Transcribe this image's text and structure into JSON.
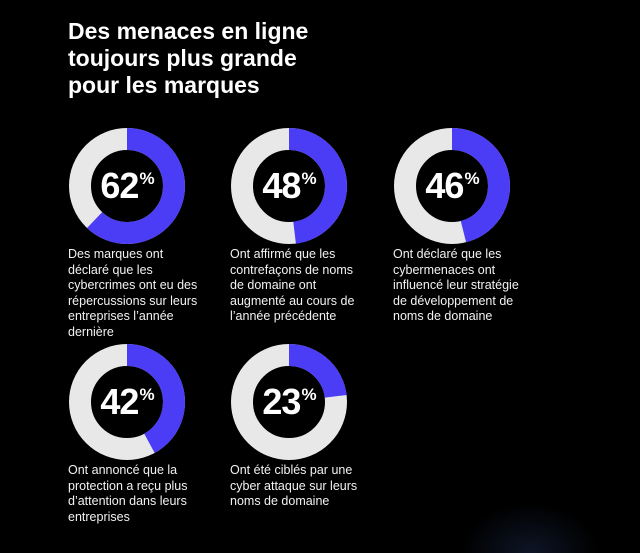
{
  "title_lines": [
    "Des menaces en ligne",
    "toujours plus grande",
    "pour les marques"
  ],
  "colors": {
    "accent": "#4b3cf5",
    "track": "#e8e8e8",
    "background": "#000000"
  },
  "chart_data": {
    "type": "pie",
    "title": "Des menaces en ligne toujours plus grande pour les marques",
    "percent_symbol": "%",
    "stats": [
      {
        "value": 62,
        "label": "62",
        "caption_lines": [
          "Des marques ont",
          "déclaré que les",
          "cybercrimes ont eu des",
          "répercussions sur leurs",
          "entreprises l’année",
          "dernière"
        ]
      },
      {
        "value": 48,
        "label": "48",
        "caption_lines": [
          "Ont affirmé que les",
          "contrefaçons de noms",
          "de domaine ont",
          "augmenté au cours de",
          "l’année précédente"
        ]
      },
      {
        "value": 46,
        "label": "46",
        "caption_lines": [
          "Ont déclaré que les",
          "cybermenaces ont",
          "influencé leur stratégie",
          "de développement de",
          "noms de domaine"
        ]
      },
      {
        "value": 42,
        "label": "42",
        "caption_lines": [
          "Ont annoncé que la",
          "protection a reçu plus",
          "d’attention dans leurs",
          "entreprises"
        ]
      },
      {
        "value": 23,
        "label": "23",
        "caption_lines": [
          "Ont été ciblés par une",
          "cyber attaque sur leurs",
          "noms de domaine"
        ]
      }
    ]
  }
}
